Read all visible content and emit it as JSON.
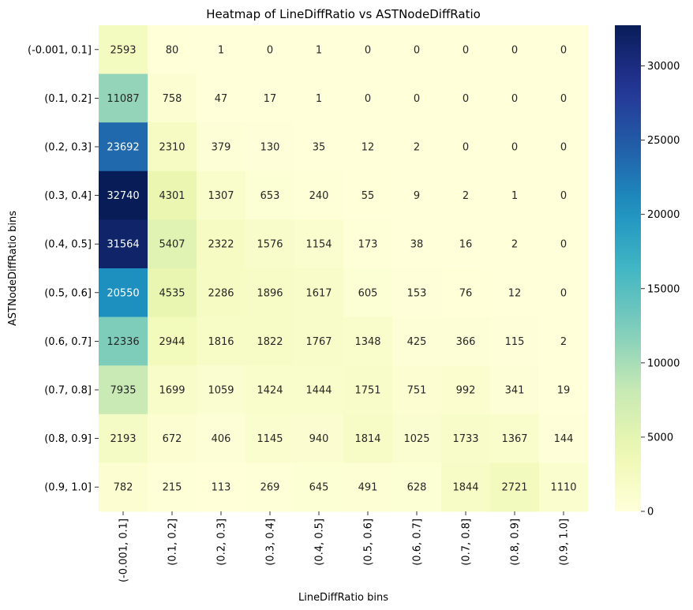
{
  "chart_data": {
    "type": "heatmap",
    "title": "Heatmap of LineDiffRatio vs ASTNodeDiffRatio",
    "xlabel": "LineDiffRatio bins",
    "ylabel": "ASTNodeDiffRatio bins",
    "x_categories": [
      "(-0.001, 0.1]",
      "(0.1, 0.2]",
      "(0.2, 0.3]",
      "(0.3, 0.4]",
      "(0.4, 0.5]",
      "(0.5, 0.6]",
      "(0.6, 0.7]",
      "(0.7, 0.8]",
      "(0.8, 0.9]",
      "(0.9, 1.0]"
    ],
    "y_categories": [
      "(-0.001, 0.1]",
      "(0.1, 0.2]",
      "(0.2, 0.3]",
      "(0.3, 0.4]",
      "(0.4, 0.5]",
      "(0.5, 0.6]",
      "(0.6, 0.7]",
      "(0.7, 0.8]",
      "(0.8, 0.9]",
      "(0.9, 1.0]"
    ],
    "values": [
      [
        2593,
        80,
        1,
        0,
        1,
        0,
        0,
        0,
        0,
        0
      ],
      [
        11087,
        758,
        47,
        17,
        1,
        0,
        0,
        0,
        0,
        0
      ],
      [
        23692,
        2310,
        379,
        130,
        35,
        12,
        2,
        0,
        0,
        0
      ],
      [
        32740,
        4301,
        1307,
        653,
        240,
        55,
        9,
        2,
        1,
        0
      ],
      [
        31564,
        5407,
        2322,
        1576,
        1154,
        173,
        38,
        16,
        2,
        0
      ],
      [
        20550,
        4535,
        2286,
        1896,
        1617,
        605,
        153,
        76,
        12,
        0
      ],
      [
        12336,
        2944,
        1816,
        1822,
        1767,
        1348,
        425,
        366,
        115,
        2
      ],
      [
        7935,
        1699,
        1059,
        1424,
        1444,
        1751,
        751,
        992,
        341,
        19
      ],
      [
        2193,
        672,
        406,
        1145,
        940,
        1814,
        1025,
        1733,
        1367,
        144
      ],
      [
        782,
        215,
        113,
        269,
        645,
        491,
        628,
        1844,
        2721,
        1110
      ]
    ],
    "colormap": "YlGnBu",
    "colorbar": {
      "min": 0,
      "max": 32740,
      "ticks": [
        0,
        5000,
        10000,
        15000,
        20000,
        25000,
        30000
      ]
    },
    "annotations": true,
    "grid": false
  }
}
